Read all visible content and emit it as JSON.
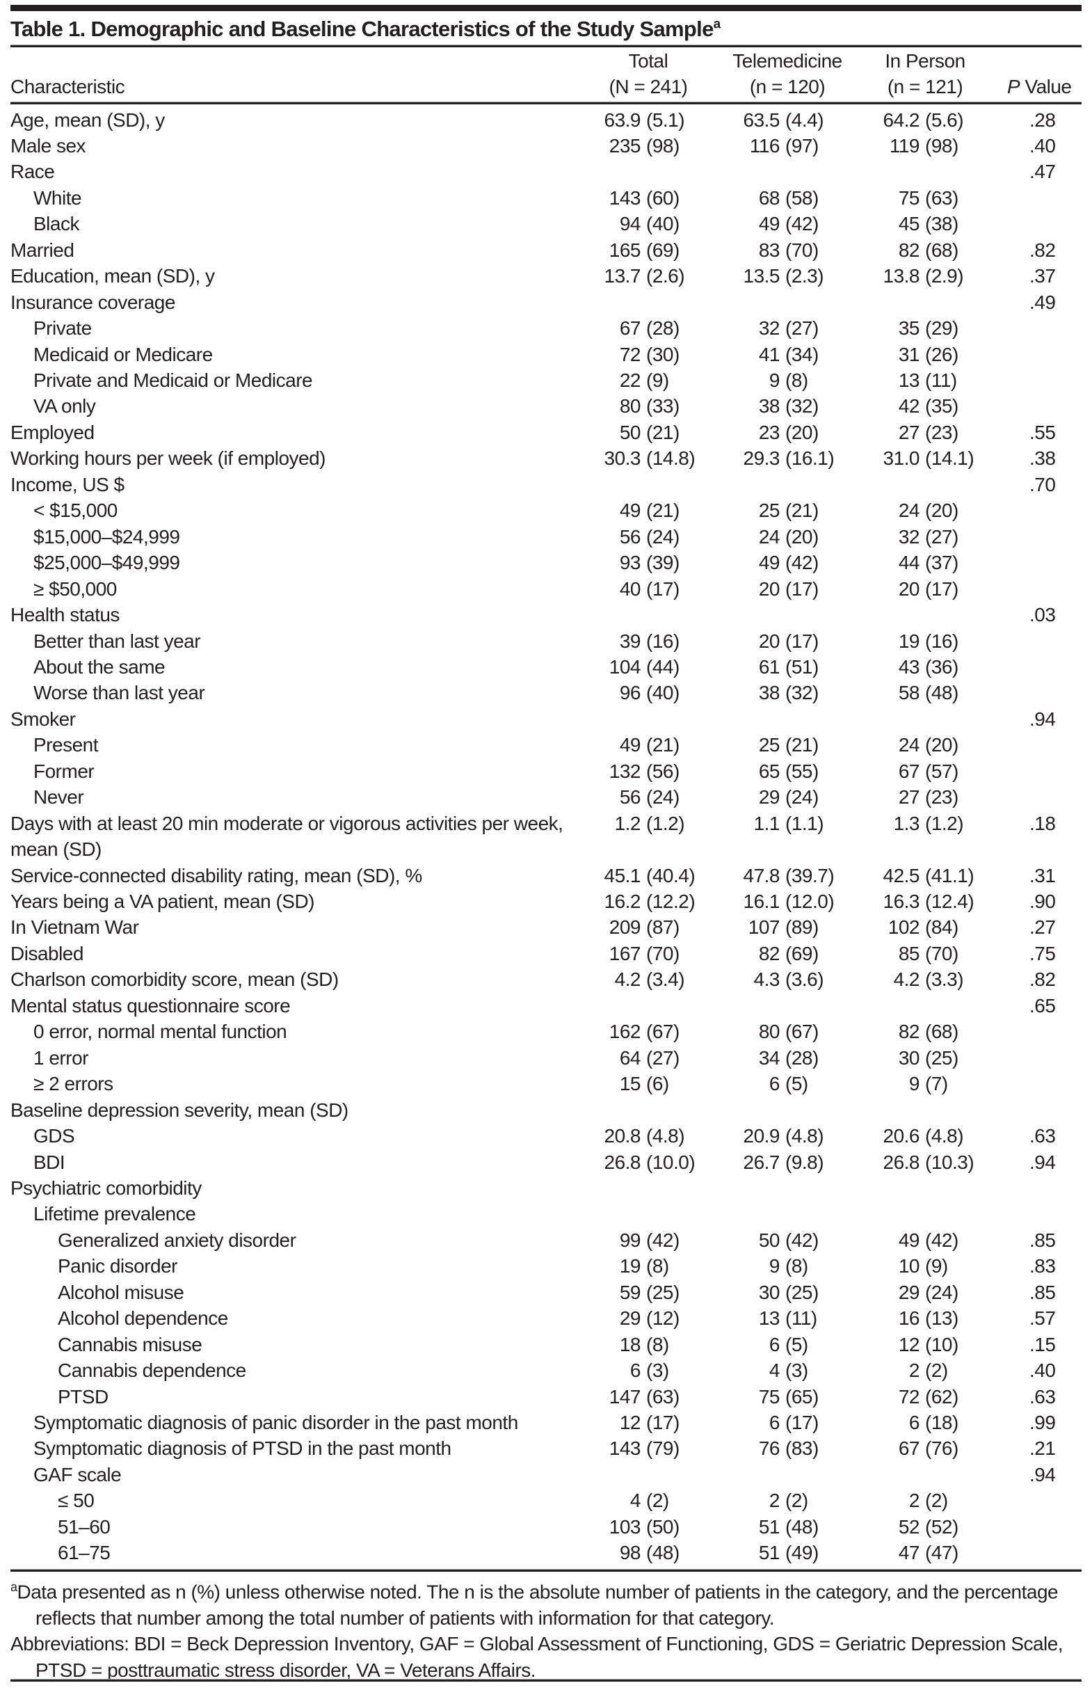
{
  "title": "Table 1. Demographic and Baseline Characteristics of the Study Sample",
  "title_sup": "a",
  "headers": {
    "characteristic": "Characteristic",
    "total": "Total",
    "total_n": "(N = 241)",
    "tele": "Telemedicine",
    "tele_n": "(n = 120)",
    "inperson": "In Person",
    "inperson_n": "(n = 121)",
    "p_italic": "P",
    "p_rest": " Value"
  },
  "rows": [
    {
      "label": "Age, mean (SD), y",
      "indent": 0,
      "total": [
        "63.9",
        "(5.1)"
      ],
      "tele": [
        "63.5",
        "(4.4)"
      ],
      "inperson": [
        "64.2",
        "(5.6)"
      ],
      "p": ".28"
    },
    {
      "label": "Male sex",
      "indent": 0,
      "total": [
        "235",
        "(98)"
      ],
      "tele": [
        "116",
        "(97)"
      ],
      "inperson": [
        "119",
        "(98)"
      ],
      "p": ".40"
    },
    {
      "label": "Race",
      "indent": 0,
      "p": ".47"
    },
    {
      "label": "White",
      "indent": 1,
      "total": [
        "143",
        "(60)"
      ],
      "tele": [
        "68",
        "(58)"
      ],
      "inperson": [
        "75",
        "(63)"
      ]
    },
    {
      "label": "Black",
      "indent": 1,
      "total": [
        "94",
        "(40)"
      ],
      "tele": [
        "49",
        "(42)"
      ],
      "inperson": [
        "45",
        "(38)"
      ]
    },
    {
      "label": "Married",
      "indent": 0,
      "total": [
        "165",
        "(69)"
      ],
      "tele": [
        "83",
        "(70)"
      ],
      "inperson": [
        "82",
        "(68)"
      ],
      "p": ".82"
    },
    {
      "label": "Education, mean (SD), y",
      "indent": 0,
      "total": [
        "13.7",
        "(2.6)"
      ],
      "tele": [
        "13.5",
        "(2.3)"
      ],
      "inperson": [
        "13.8",
        "(2.9)"
      ],
      "p": ".37"
    },
    {
      "label": "Insurance coverage",
      "indent": 0,
      "p": ".49"
    },
    {
      "label": "Private",
      "indent": 1,
      "total": [
        "67",
        "(28)"
      ],
      "tele": [
        "32",
        "(27)"
      ],
      "inperson": [
        "35",
        "(29)"
      ]
    },
    {
      "label": "Medicaid or Medicare",
      "indent": 1,
      "total": [
        "72",
        "(30)"
      ],
      "tele": [
        "41",
        "(34)"
      ],
      "inperson": [
        "31",
        "(26)"
      ]
    },
    {
      "label": "Private and Medicaid or Medicare",
      "indent": 1,
      "total": [
        "22",
        "(9)"
      ],
      "tele": [
        "9",
        "(8)"
      ],
      "inperson": [
        "13",
        "(11)"
      ]
    },
    {
      "label": "VA only",
      "indent": 1,
      "total": [
        "80",
        "(33)"
      ],
      "tele": [
        "38",
        "(32)"
      ],
      "inperson": [
        "42",
        "(35)"
      ]
    },
    {
      "label": "Employed",
      "indent": 0,
      "total": [
        "50",
        "(21)"
      ],
      "tele": [
        "23",
        "(20)"
      ],
      "inperson": [
        "27",
        "(23)"
      ],
      "p": ".55"
    },
    {
      "label": "Working hours per week (if employed)",
      "indent": 0,
      "total": [
        "30.3",
        "(14.8)"
      ],
      "tele": [
        "29.3",
        "(16.1)"
      ],
      "inperson": [
        "31.0",
        "(14.1)"
      ],
      "p": ".38"
    },
    {
      "label": "Income, US $",
      "indent": 0,
      "p": ".70"
    },
    {
      "label": "< $15,000",
      "indent": 1,
      "total": [
        "49",
        "(21)"
      ],
      "tele": [
        "25",
        "(21)"
      ],
      "inperson": [
        "24",
        "(20)"
      ]
    },
    {
      "label": "$15,000–$24,999",
      "indent": 1,
      "total": [
        "56",
        "(24)"
      ],
      "tele": [
        "24",
        "(20)"
      ],
      "inperson": [
        "32",
        "(27)"
      ]
    },
    {
      "label": "$25,000–$49,999",
      "indent": 1,
      "total": [
        "93",
        "(39)"
      ],
      "tele": [
        "49",
        "(42)"
      ],
      "inperson": [
        "44",
        "(37)"
      ]
    },
    {
      "label": "≥ $50,000",
      "indent": 1,
      "total": [
        "40",
        "(17)"
      ],
      "tele": [
        "20",
        "(17)"
      ],
      "inperson": [
        "20",
        "(17)"
      ]
    },
    {
      "label": "Health status",
      "indent": 0,
      "p": ".03"
    },
    {
      "label": "Better than last year",
      "indent": 1,
      "total": [
        "39",
        "(16)"
      ],
      "tele": [
        "20",
        "(17)"
      ],
      "inperson": [
        "19",
        "(16)"
      ]
    },
    {
      "label": "About the same",
      "indent": 1,
      "total": [
        "104",
        "(44)"
      ],
      "tele": [
        "61",
        "(51)"
      ],
      "inperson": [
        "43",
        "(36)"
      ]
    },
    {
      "label": "Worse than last year",
      "indent": 1,
      "total": [
        "96",
        "(40)"
      ],
      "tele": [
        "38",
        "(32)"
      ],
      "inperson": [
        "58",
        "(48)"
      ]
    },
    {
      "label": "Smoker",
      "indent": 0,
      "p": ".94"
    },
    {
      "label": "Present",
      "indent": 1,
      "total": [
        "49",
        "(21)"
      ],
      "tele": [
        "25",
        "(21)"
      ],
      "inperson": [
        "24",
        "(20)"
      ]
    },
    {
      "label": "Former",
      "indent": 1,
      "total": [
        "132",
        "(56)"
      ],
      "tele": [
        "65",
        "(55)"
      ],
      "inperson": [
        "67",
        "(57)"
      ]
    },
    {
      "label": "Never",
      "indent": 1,
      "total": [
        "56",
        "(24)"
      ],
      "tele": [
        "29",
        "(24)"
      ],
      "inperson": [
        "27",
        "(23)"
      ]
    },
    {
      "label": "Days with at least 20 min moderate or vigorous activities per week, mean (SD)",
      "indent": 0,
      "lines": 2,
      "total": [
        "1.2",
        "(1.2)"
      ],
      "tele": [
        "1.1",
        "(1.1)"
      ],
      "inperson": [
        "1.3",
        "(1.2)"
      ],
      "p": ".18"
    },
    {
      "label": "Service-connected disability rating, mean (SD), %",
      "indent": 0,
      "total": [
        "45.1",
        "(40.4)"
      ],
      "tele": [
        "47.8",
        "(39.7)"
      ],
      "inperson": [
        "42.5",
        "(41.1)"
      ],
      "p": ".31"
    },
    {
      "label": "Years being a VA patient, mean (SD)",
      "indent": 0,
      "total": [
        "16.2",
        "(12.2)"
      ],
      "tele": [
        "16.1",
        "(12.0)"
      ],
      "inperson": [
        "16.3",
        "(12.4)"
      ],
      "p": ".90"
    },
    {
      "label": "In Vietnam War",
      "indent": 0,
      "total": [
        "209",
        "(87)"
      ],
      "tele": [
        "107",
        "(89)"
      ],
      "inperson": [
        "102",
        "(84)"
      ],
      "p": ".27"
    },
    {
      "label": "Disabled",
      "indent": 0,
      "total": [
        "167",
        "(70)"
      ],
      "tele": [
        "82",
        "(69)"
      ],
      "inperson": [
        "85",
        "(70)"
      ],
      "p": ".75"
    },
    {
      "label": "Charlson comorbidity score, mean (SD)",
      "indent": 0,
      "total": [
        "4.2",
        "(3.4)"
      ],
      "tele": [
        "4.3",
        "(3.6)"
      ],
      "inperson": [
        "4.2",
        "(3.3)"
      ],
      "p": ".82"
    },
    {
      "label": "Mental status questionnaire score",
      "indent": 0,
      "p": ".65"
    },
    {
      "label": "0 error, normal mental function",
      "indent": 1,
      "total": [
        "162",
        "(67)"
      ],
      "tele": [
        "80",
        "(67)"
      ],
      "inperson": [
        "82",
        "(68)"
      ]
    },
    {
      "label": "1 error",
      "indent": 1,
      "total": [
        "64",
        "(27)"
      ],
      "tele": [
        "34",
        "(28)"
      ],
      "inperson": [
        "30",
        "(25)"
      ]
    },
    {
      "label": "≥ 2 errors",
      "indent": 1,
      "total": [
        "15",
        "(6)"
      ],
      "tele": [
        "6",
        "(5)"
      ],
      "inperson": [
        "9",
        "(7)"
      ]
    },
    {
      "label": "Baseline depression severity, mean (SD)",
      "indent": 0
    },
    {
      "label": "GDS",
      "indent": 1,
      "total": [
        "20.8",
        "(4.8)"
      ],
      "tele": [
        "20.9",
        "(4.8)"
      ],
      "inperson": [
        "20.6",
        "(4.8)"
      ],
      "p": ".63"
    },
    {
      "label": "BDI",
      "indent": 1,
      "total": [
        "26.8",
        "(10.0)"
      ],
      "tele": [
        "26.7",
        "(9.8)"
      ],
      "inperson": [
        "26.8",
        "(10.3)"
      ],
      "p": ".94"
    },
    {
      "label": "Psychiatric comorbidity",
      "indent": 0
    },
    {
      "label": "Lifetime prevalence",
      "indent": 1
    },
    {
      "label": "Generalized anxiety disorder",
      "indent": 2,
      "total": [
        "99",
        "(42)"
      ],
      "tele": [
        "50",
        "(42)"
      ],
      "inperson": [
        "49",
        "(42)"
      ],
      "p": ".85"
    },
    {
      "label": "Panic disorder",
      "indent": 2,
      "total": [
        "19",
        "(8)"
      ],
      "tele": [
        "9",
        "(8)"
      ],
      "inperson": [
        "10",
        "(9)"
      ],
      "p": ".83"
    },
    {
      "label": "Alcohol misuse",
      "indent": 2,
      "total": [
        "59",
        "(25)"
      ],
      "tele": [
        "30",
        "(25)"
      ],
      "inperson": [
        "29",
        "(24)"
      ],
      "p": ".85"
    },
    {
      "label": "Alcohol dependence",
      "indent": 2,
      "total": [
        "29",
        "(12)"
      ],
      "tele": [
        "13",
        "(11)"
      ],
      "inperson": [
        "16",
        "(13)"
      ],
      "p": ".57"
    },
    {
      "label": "Cannabis misuse",
      "indent": 2,
      "total": [
        "18",
        "(8)"
      ],
      "tele": [
        "6",
        "(5)"
      ],
      "inperson": [
        "12",
        "(10)"
      ],
      "p": ".15"
    },
    {
      "label": "Cannabis dependence",
      "indent": 2,
      "total": [
        "6",
        "(3)"
      ],
      "tele": [
        "4",
        "(3)"
      ],
      "inperson": [
        "2",
        "(2)"
      ],
      "p": ".40"
    },
    {
      "label": "PTSD",
      "indent": 2,
      "total": [
        "147",
        "(63)"
      ],
      "tele": [
        "75",
        "(65)"
      ],
      "inperson": [
        "72",
        "(62)"
      ],
      "p": ".63"
    },
    {
      "label": "Symptomatic diagnosis of panic disorder in the past month",
      "indent": 1,
      "total": [
        "12",
        "(17)"
      ],
      "tele": [
        "6",
        "(17)"
      ],
      "inperson": [
        "6",
        "(18)"
      ],
      "p": ".99"
    },
    {
      "label": "Symptomatic diagnosis of PTSD in the past month",
      "indent": 1,
      "total": [
        "143",
        "(79)"
      ],
      "tele": [
        "76",
        "(83)"
      ],
      "inperson": [
        "67",
        "(76)"
      ],
      "p": ".21"
    },
    {
      "label": "GAF scale",
      "indent": 1,
      "p": ".94"
    },
    {
      "label": "≤ 50",
      "indent": 2,
      "total": [
        "4",
        "(2)"
      ],
      "tele": [
        "2",
        "(2)"
      ],
      "inperson": [
        "2",
        "(2)"
      ]
    },
    {
      "label": "51–60",
      "indent": 2,
      "total": [
        "103",
        "(50)"
      ],
      "tele": [
        "51",
        "(48)"
      ],
      "inperson": [
        "52",
        "(52)"
      ]
    },
    {
      "label": "61–75",
      "indent": 2,
      "total": [
        "98",
        "(48)"
      ],
      "tele": [
        "51",
        "(49)"
      ],
      "inperson": [
        "47",
        "(47)"
      ]
    }
  ],
  "footnotes": {
    "a_mark": "a",
    "a_text": "Data presented as n (%) unless otherwise noted. The n is the absolute number of patients in the category, and the percentage reflects that number among the total number of patients with information for that category.",
    "abbreviations": "Abbreviations: BDI = Beck Depression Inventory, GAF = Global Assessment of Functioning, GDS = Geriatric Depression Scale, PTSD = posttraumatic stress disorder, VA = Veterans Affairs."
  }
}
